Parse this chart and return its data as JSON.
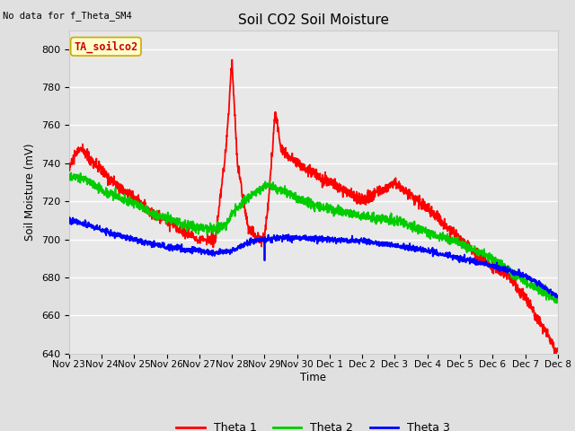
{
  "title": "Soil CO2 Soil Moisture",
  "no_data_text": "No data for f_Theta_SM4",
  "annotation_text": "TA_soilco2",
  "ylabel": "Soil Moisture (mV)",
  "xlabel": "Time",
  "ylim": [
    640,
    810
  ],
  "yticks": [
    640,
    660,
    680,
    700,
    720,
    740,
    760,
    780,
    800
  ],
  "background_color": "#e0e0e0",
  "plot_bg_color": "#e8e8e8",
  "grid_color": "#ffffff",
  "xtick_labels": [
    "Nov 23",
    "Nov 24",
    "Nov 25",
    "Nov 26",
    "Nov 27",
    "Nov 28",
    "Nov 29",
    "Nov 30",
    "Dec 1",
    "Dec 2",
    "Dec 3",
    "Dec 4",
    "Dec 5",
    "Dec 6",
    "Dec 7",
    "Dec 8"
  ],
  "legend_entries": [
    "Theta 1",
    "Theta 2",
    "Theta 3"
  ],
  "legend_colors": [
    "#ff0000",
    "#00cc00",
    "#0000ff"
  ],
  "line_width": 1.3,
  "annotation_color": "#cc0000",
  "annotation_bg": "#ffffcc",
  "annotation_edge": "#ccaa00"
}
